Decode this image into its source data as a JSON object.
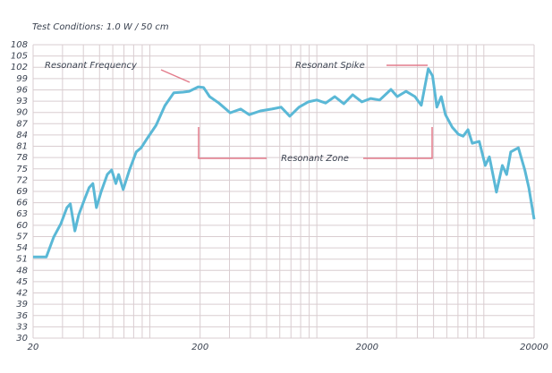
{
  "chart_data": {
    "type": "line",
    "title": "Test Conditions: 1.0 W / 50 cm",
    "color": "#5ab8d6",
    "log_x": true,
    "grid": true,
    "xlim": [
      20,
      20000
    ],
    "xticks": [
      20,
      200,
      2000,
      20000
    ],
    "x_gridlines": [
      20,
      30,
      40,
      50,
      60,
      70,
      80,
      90,
      100,
      200,
      300,
      400,
      500,
      600,
      700,
      800,
      900,
      1000,
      2000,
      3000,
      4000,
      5000,
      6000,
      7000,
      8000,
      9000,
      10000,
      20000
    ],
    "ylim": [
      30,
      108
    ],
    "yticks": [
      30,
      33,
      36,
      39,
      42,
      45,
      48,
      51,
      54,
      57,
      60,
      63,
      66,
      69,
      72,
      75,
      78,
      81,
      84,
      87,
      90,
      93,
      96,
      99,
      102,
      105,
      108
    ],
    "x": [
      20,
      24,
      26.6,
      29.3,
      31.9,
      33.4,
      35.6,
      37.5,
      40.8,
      43.3,
      45.6,
      47.9,
      51,
      55.6,
      59.1,
      62.6,
      65,
      69.3,
      75.5,
      82.9,
      88.7,
      96.2,
      109,
      123,
      139,
      158,
      172,
      195,
      210,
      228,
      259,
      303,
      350,
      394,
      459,
      538,
      611,
      689,
      782,
      888,
      1000,
      1130,
      1280,
      1450,
      1640,
      1860,
      2100,
      2380,
      2780,
      3030,
      3420,
      3870,
      4220,
      4650,
      4930,
      5230,
      5560,
      5890,
      6460,
      7040,
      7520,
      8040,
      8530,
      9390,
      10200,
      10800,
      11900,
      12900,
      13700,
      14500,
      16100,
      17600,
      18600,
      20000
    ],
    "values": [
      51.6,
      51.6,
      56.9,
      60.4,
      64.7,
      65.7,
      58.5,
      62.8,
      67.1,
      70,
      71.1,
      64.7,
      68.8,
      73.5,
      74.7,
      71.1,
      73.5,
      69.5,
      74.7,
      79.5,
      80.6,
      83,
      86.6,
      91.8,
      95.2,
      95.4,
      95.6,
      96.8,
      96.6,
      94.2,
      92.5,
      89.9,
      90.9,
      89.4,
      90.4,
      90.9,
      91.4,
      89,
      91.4,
      92.8,
      93.3,
      92.5,
      94.2,
      92.3,
      94.7,
      92.8,
      93.7,
      93.3,
      96.1,
      94.2,
      95.6,
      94.2,
      91.9,
      101.6,
      99.7,
      91.4,
      94.2,
      89.4,
      86.1,
      84.2,
      83.7,
      85.4,
      81.8,
      82.3,
      75.9,
      78.2,
      68.8,
      75.9,
      73.5,
      79.5,
      80.6,
      74.7,
      70,
      61.6
    ],
    "annotations": [
      "Resonant Frequency",
      "Resonant Spike",
      "Resonant Zone"
    ]
  }
}
